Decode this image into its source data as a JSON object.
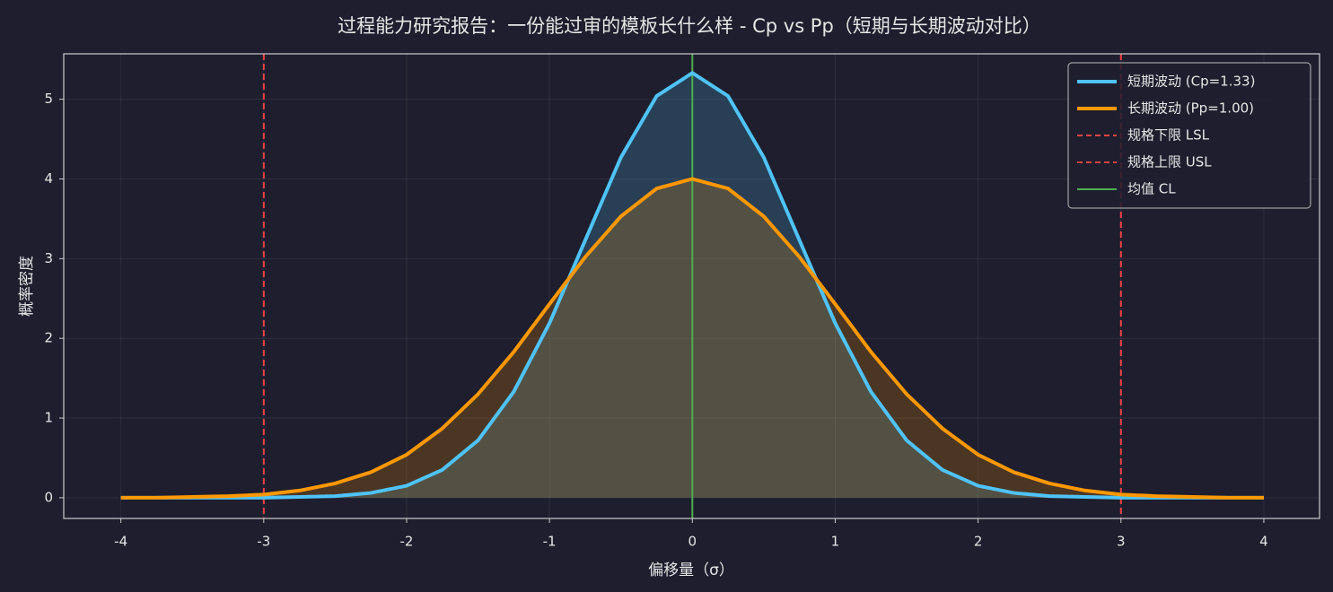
{
  "chart_data": {
    "type": "line",
    "title": "过程能力研究报告：一份能过审的模板长什么样 - Cp vs Pp（短期与长期波动对比）",
    "xlabel": "偏移量（σ）",
    "ylabel": "概率密度",
    "x": [
      -4,
      -3.75,
      -3.5,
      -3.25,
      -3,
      -2.75,
      -2.5,
      -2.25,
      -2,
      -1.75,
      -1.5,
      -1.25,
      -1,
      -0.75,
      -0.5,
      -0.25,
      0,
      0.25,
      0.5,
      0.75,
      1,
      1.25,
      1.5,
      1.75,
      2,
      2.25,
      2.5,
      2.75,
      3,
      3.25,
      3.5,
      3.75,
      4
    ],
    "series": [
      {
        "name": "短期波动 (Cp=1.33)",
        "color": "#4fc3f7",
        "fill": true,
        "values": [
          0,
          0,
          0,
          0,
          0,
          0.01,
          0.02,
          0.06,
          0.15,
          0.35,
          0.72,
          1.33,
          2.19,
          3.23,
          4.27,
          5.04,
          5.33,
          5.04,
          4.27,
          3.23,
          2.19,
          1.33,
          0.72,
          0.35,
          0.15,
          0.06,
          0.02,
          0.01,
          0,
          0,
          0,
          0,
          0
        ]
      },
      {
        "name": "长期波动 (Pp=1.00)",
        "color": "#ff9800",
        "fill": true,
        "values": [
          0,
          0,
          0.01,
          0.02,
          0.04,
          0.09,
          0.18,
          0.32,
          0.54,
          0.87,
          1.3,
          1.83,
          2.43,
          3.02,
          3.53,
          3.88,
          4.0,
          3.88,
          3.53,
          3.02,
          2.43,
          1.83,
          1.3,
          0.87,
          0.54,
          0.32,
          0.18,
          0.09,
          0.04,
          0.02,
          0.01,
          0,
          0
        ]
      }
    ],
    "reference_lines": [
      {
        "name": "规格下限 LSL",
        "x": -3,
        "color": "#ef4444",
        "dashed": true
      },
      {
        "name": "规格上限 USL",
        "x": 3,
        "color": "#ef4444",
        "dashed": true
      },
      {
        "name": "均值 CL",
        "x": 0,
        "color": "#4caf50",
        "dashed": false
      }
    ],
    "xlim": [
      -4.4,
      4.39
    ],
    "ylim": [
      -0.26,
      5.57
    ],
    "xticks": [
      -4,
      -3,
      -2,
      -1,
      0,
      1,
      2,
      3,
      4
    ],
    "yticks": [
      0,
      1,
      2,
      3,
      4,
      5
    ],
    "grid": true,
    "legend": "upper right"
  }
}
